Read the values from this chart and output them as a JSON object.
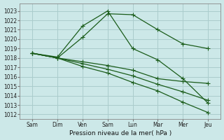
{
  "xlabel": "Pression niveau de la mer( hPa )",
  "bg_color": "#cce8e8",
  "grid_color": "#aacccc",
  "line_color": "#1a5c1a",
  "xtick_labels": [
    "Sam",
    "Dim",
    "Ven",
    "Sam",
    "Lun",
    "Mar",
    "Mer",
    "Jeu"
  ],
  "ytick_labels": [
    1012,
    1013,
    1014,
    1015,
    1016,
    1017,
    1018,
    1019,
    1020,
    1021,
    1022,
    1023
  ],
  "ylim": [
    1011.5,
    1023.8
  ],
  "xlim": [
    -0.5,
    7.5
  ],
  "line1": [
    1018.5,
    1018.1,
    1021.4,
    1023.0,
    1019.0,
    1017.8,
    1015.8,
    1013.2
  ],
  "line2": [
    1018.5,
    1018.0,
    1020.2,
    1022.7,
    1022.6,
    1021.0,
    1019.5,
    1019.0
  ],
  "line3": [
    1018.5,
    1018.0,
    1017.6,
    1017.2,
    1016.7,
    1015.8,
    1015.5,
    1015.3
  ],
  "line4": [
    1018.5,
    1018.0,
    1017.4,
    1016.8,
    1016.1,
    1015.2,
    1014.4,
    1013.5
  ],
  "line5": [
    1018.5,
    1018.0,
    1017.1,
    1016.4,
    1015.4,
    1014.5,
    1013.3,
    1012.2
  ]
}
